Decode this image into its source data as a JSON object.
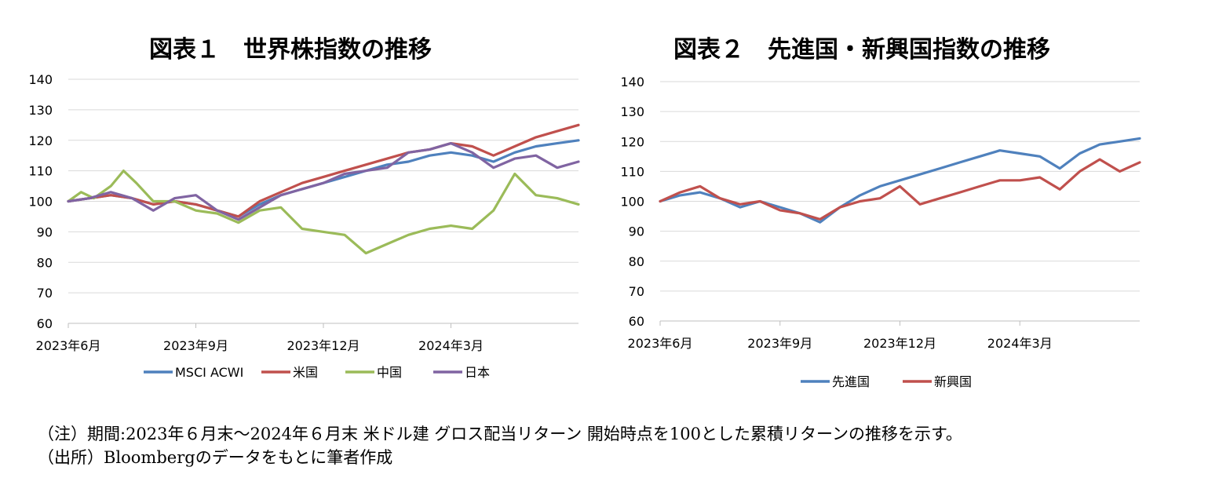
{
  "titles": {
    "chart1": "図表１　世界株指数の推移",
    "chart2": "図表２　先進国・新興国指数の推移"
  },
  "notes": {
    "note1": "（注）期間:2023年６月末～2024年６月末 米ドル建 グロス配当リターン 開始時点を100とした累積リターンの推移を示す。",
    "note2": "（出所）Bloombergのデータをもとに筆者作成"
  },
  "chart_data": [
    {
      "type": "line",
      "title": "図表１　世界株指数の推移",
      "ylim": [
        60,
        140
      ],
      "yticks": [
        60,
        70,
        80,
        90,
        100,
        110,
        120,
        130,
        140
      ],
      "xlim": [
        0,
        12
      ],
      "xticks": [
        {
          "x": 0,
          "label": "2023年6月"
        },
        {
          "x": 3,
          "label": "2023年9月"
        },
        {
          "x": 6,
          "label": "2023年12月"
        },
        {
          "x": 9,
          "label": "2024年3月"
        }
      ],
      "grid": true,
      "legend_position": "bottom",
      "series": [
        {
          "name": "MSCI ACWI",
          "color": "#4f81bd",
          "x": [
            0,
            0.5,
            1,
            1.5,
            2,
            2.5,
            3,
            3.5,
            4,
            4.5,
            5,
            5.5,
            6,
            6.5,
            7,
            7.5,
            8,
            8.5,
            9,
            9.5,
            10,
            10.5,
            11,
            11.5,
            12
          ],
          "values": [
            100,
            101,
            102,
            101,
            99,
            100,
            99,
            97,
            95,
            99,
            102,
            104,
            106,
            108,
            110,
            112,
            113,
            115,
            116,
            115,
            113,
            116,
            118,
            119,
            120
          ]
        },
        {
          "name": "米国",
          "color": "#c0504d",
          "x": [
            0,
            0.5,
            1,
            1.5,
            2,
            2.5,
            3,
            3.5,
            4,
            4.5,
            5,
            5.5,
            6,
            6.5,
            7,
            7.5,
            8,
            8.5,
            9,
            9.5,
            10,
            10.5,
            11,
            11.5,
            12
          ],
          "values": [
            100,
            101,
            102,
            101,
            99,
            100,
            99,
            97,
            95,
            100,
            103,
            106,
            108,
            110,
            112,
            114,
            116,
            117,
            119,
            118,
            115,
            118,
            121,
            123,
            125
          ]
        },
        {
          "name": "中国",
          "color": "#9bbb59",
          "x": [
            0,
            0.3,
            0.6,
            1,
            1.3,
            1.6,
            2,
            2.5,
            3,
            3.5,
            4,
            4.5,
            5,
            5.5,
            6,
            6.5,
            7,
            7.5,
            8,
            8.5,
            9,
            9.5,
            10,
            10.5,
            11,
            11.5,
            12
          ],
          "values": [
            100,
            103,
            101,
            105,
            110,
            106,
            100,
            100,
            97,
            96,
            93,
            97,
            98,
            91,
            90,
            89,
            83,
            86,
            89,
            91,
            92,
            91,
            97,
            109,
            102,
            101,
            99
          ]
        },
        {
          "name": "日本",
          "color": "#8064a2",
          "x": [
            0,
            0.5,
            1,
            1.5,
            2,
            2.5,
            3,
            3.5,
            4,
            4.5,
            5,
            5.5,
            6,
            6.5,
            7,
            7.5,
            8,
            8.5,
            9,
            9.5,
            10,
            10.5,
            11,
            11.5,
            12
          ],
          "values": [
            100,
            101,
            103,
            101,
            97,
            101,
            102,
            97,
            94,
            98,
            102,
            104,
            106,
            109,
            110,
            111,
            116,
            117,
            119,
            116,
            111,
            114,
            115,
            111,
            113
          ]
        }
      ]
    },
    {
      "type": "line",
      "title": "図表２　先進国・新興国指数の推移",
      "ylim": [
        60,
        140
      ],
      "yticks": [
        60,
        70,
        80,
        90,
        100,
        110,
        120,
        130,
        140
      ],
      "xlim": [
        0,
        12
      ],
      "xticks": [
        {
          "x": 0,
          "label": "2023年6月"
        },
        {
          "x": 3,
          "label": "2023年9月"
        },
        {
          "x": 6,
          "label": "2023年12月"
        },
        {
          "x": 9,
          "label": "2024年3月"
        }
      ],
      "grid": true,
      "legend_position": "bottom",
      "series": [
        {
          "name": "先進国",
          "color": "#4f81bd",
          "x": [
            0,
            0.5,
            1,
            1.5,
            2,
            2.5,
            3,
            3.5,
            4,
            4.5,
            5,
            5.5,
            6,
            6.5,
            7,
            7.5,
            8,
            8.5,
            9,
            9.5,
            10,
            10.5,
            11,
            11.5,
            12
          ],
          "values": [
            100,
            102,
            103,
            101,
            98,
            100,
            98,
            96,
            93,
            98,
            102,
            105,
            107,
            109,
            111,
            113,
            115,
            117,
            116,
            115,
            111,
            116,
            119,
            120,
            121
          ]
        },
        {
          "name": "新興国",
          "color": "#c0504d",
          "x": [
            0,
            0.5,
            1,
            1.5,
            2,
            2.5,
            3,
            3.5,
            4,
            4.5,
            5,
            5.5,
            6,
            6.5,
            7,
            7.5,
            8,
            8.5,
            9,
            9.5,
            10,
            10.5,
            11,
            11.5,
            12
          ],
          "values": [
            100,
            103,
            105,
            101,
            99,
            100,
            97,
            96,
            94,
            98,
            100,
            101,
            105,
            99,
            101,
            103,
            105,
            107,
            107,
            108,
            104,
            110,
            114,
            110,
            113
          ]
        }
      ]
    }
  ]
}
